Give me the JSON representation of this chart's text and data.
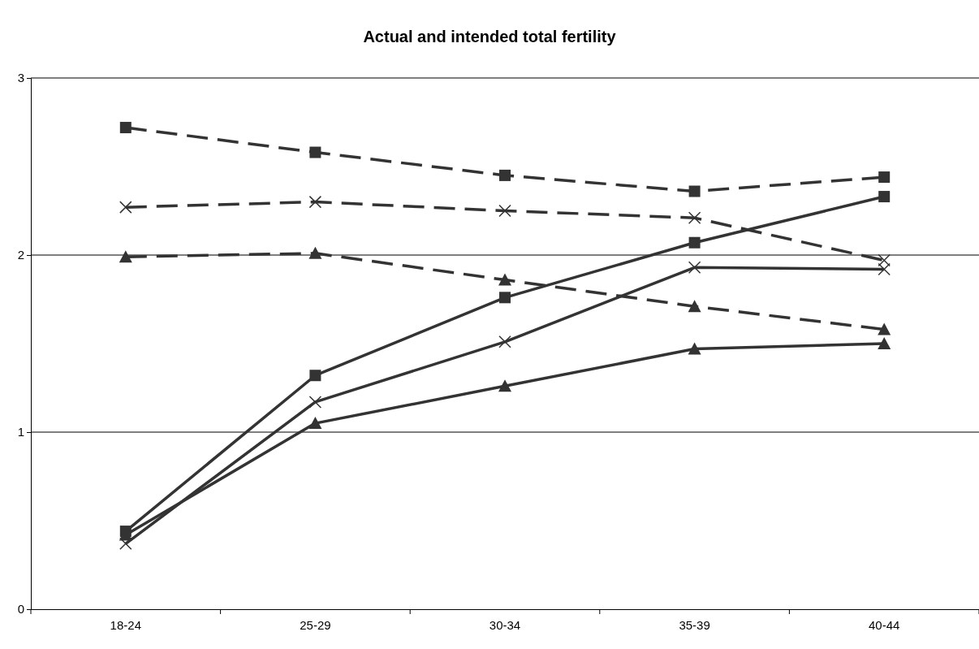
{
  "chart_data": {
    "type": "line",
    "title": "Actual and intended total fertility",
    "categories": [
      "18-24",
      "25-29",
      "30-34",
      "35-39",
      "40-44"
    ],
    "ylim": [
      0,
      3
    ],
    "yticks": [
      0,
      1,
      2,
      3
    ],
    "grid": "y",
    "series": [
      {
        "color": "#333333",
        "marker": "square",
        "line_style": "dashed",
        "values": [
          2.72,
          2.58,
          2.45,
          2.36,
          2.44
        ]
      },
      {
        "color": "#333333",
        "marker": "cross",
        "line_style": "dashed",
        "values": [
          2.27,
          2.3,
          2.25,
          2.21,
          1.97
        ]
      },
      {
        "color": "#333333",
        "marker": "triangle",
        "line_style": "dashed",
        "values": [
          1.99,
          2.01,
          1.86,
          1.71,
          1.58
        ]
      },
      {
        "color": "#333333",
        "marker": "square",
        "line_style": "solid",
        "values": [
          0.44,
          1.32,
          1.76,
          2.07,
          2.33
        ]
      },
      {
        "color": "#333333",
        "marker": "cross",
        "line_style": "solid",
        "values": [
          0.37,
          1.17,
          1.51,
          1.93,
          1.92
        ]
      },
      {
        "color": "#333333",
        "marker": "triangle",
        "line_style": "solid",
        "values": [
          0.42,
          1.05,
          1.26,
          1.47,
          1.5
        ]
      }
    ]
  }
}
